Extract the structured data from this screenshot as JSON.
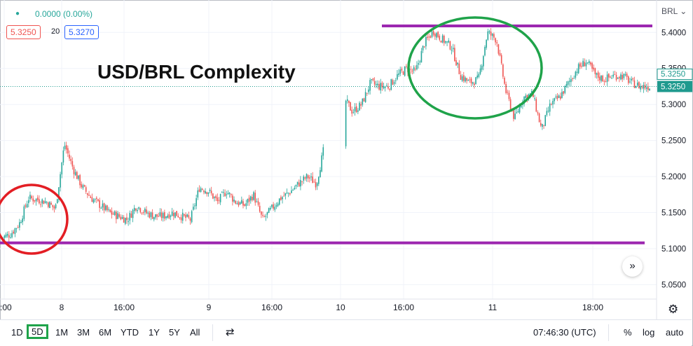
{
  "header": {
    "change_text": "0.0000 (0.00%)",
    "bid": "5.3250",
    "spread": "20",
    "ask": "5.3270",
    "currency": "BRL",
    "currency_caret": "⌄"
  },
  "annotation_title": "USD/BRL Complexity",
  "time_axis_labels": [
    ":00",
    "8",
    "16:00",
    "9",
    "16:00",
    "10",
    "16:00",
    "11",
    "18:00"
  ],
  "toolbar": {
    "timeframes": [
      "1D",
      "5D",
      "1M",
      "3M",
      "6M",
      "YTD",
      "1Y",
      "5Y",
      "All"
    ],
    "selected_timeframe": "5D",
    "clock": "07:46:30 (UTC)",
    "percent_label": "%",
    "log_label": "log",
    "auto_label": "auto"
  },
  "colors": {
    "up": "#26a69a",
    "down": "#ef5350",
    "support_resistance": "#9c27b0",
    "circle_red": "#e31e24",
    "circle_green": "#1fa34a",
    "price_badge": "#1f9a8e"
  },
  "icons": [
    "settings-gear-icon",
    "compare-icon",
    "scroll-right-icon",
    "status-dot-icon"
  ],
  "chart_data": {
    "type": "candlestick",
    "symbol": "USD/BRL",
    "y_axis_labels": [
      "5.4000",
      "5.3500",
      "5.3250",
      "5.3000",
      "5.2500",
      "5.2000",
      "5.1500",
      "5.1000",
      "5.0500"
    ],
    "y_ticks": [
      5.4,
      5.35,
      5.3,
      5.25,
      5.2,
      5.15,
      5.1,
      5.05
    ],
    "ylim": [
      5.03,
      5.445
    ],
    "last_price": 5.325,
    "last_price_label": "5.3250",
    "secondary_price_label": "5.3250",
    "horizontal_lines": [
      {
        "role": "resistance",
        "value": 5.409
      },
      {
        "role": "support",
        "value": 5.108
      }
    ],
    "annotations": [
      "red circle around early low",
      "green circle around double top"
    ],
    "close_path": [
      [
        0,
        5.115
      ],
      [
        2,
        5.12
      ],
      [
        4,
        5.135
      ],
      [
        6,
        5.17
      ],
      [
        8,
        5.168
      ],
      [
        10,
        5.165
      ],
      [
        12,
        5.155
      ],
      [
        13,
        5.2
      ],
      [
        14,
        5.245
      ],
      [
        16,
        5.21
      ],
      [
        18,
        5.185
      ],
      [
        20,
        5.17
      ],
      [
        22,
        5.16
      ],
      [
        24,
        5.15
      ],
      [
        26,
        5.145
      ],
      [
        28,
        5.14
      ],
      [
        30,
        5.16
      ],
      [
        32,
        5.15
      ],
      [
        34,
        5.145
      ],
      [
        36,
        5.145
      ],
      [
        38,
        5.15
      ],
      [
        40,
        5.145
      ],
      [
        42,
        5.14
      ],
      [
        44,
        5.185
      ],
      [
        46,
        5.18
      ],
      [
        48,
        5.165
      ],
      [
        50,
        5.18
      ],
      [
        52,
        5.165
      ],
      [
        54,
        5.16
      ],
      [
        56,
        5.175
      ],
      [
        58,
        5.14
      ],
      [
        60,
        5.155
      ],
      [
        62,
        5.17
      ],
      [
        64,
        5.178
      ],
      [
        66,
        5.19
      ],
      [
        68,
        5.2
      ],
      [
        70,
        5.19
      ],
      [
        72,
        5.25
      ],
      [
        74,
        5.3
      ],
      [
        76,
        5.31
      ],
      [
        78,
        5.29
      ],
      [
        80,
        5.3
      ],
      [
        82,
        5.33
      ],
      [
        84,
        5.325
      ],
      [
        86,
        5.325
      ],
      [
        88,
        5.34
      ],
      [
        90,
        5.35
      ],
      [
        92,
        5.345
      ],
      [
        94,
        5.385
      ],
      [
        96,
        5.402
      ],
      [
        98,
        5.39
      ],
      [
        100,
        5.38
      ],
      [
        102,
        5.34
      ],
      [
        104,
        5.33
      ],
      [
        106,
        5.335
      ],
      [
        108,
        5.4
      ],
      [
        110,
        5.39
      ],
      [
        112,
        5.32
      ],
      [
        114,
        5.28
      ],
      [
        116,
        5.31
      ],
      [
        118,
        5.315
      ],
      [
        120,
        5.265
      ],
      [
        122,
        5.3
      ],
      [
        124,
        5.31
      ],
      [
        126,
        5.33
      ],
      [
        128,
        5.35
      ],
      [
        130,
        5.36
      ],
      [
        132,
        5.34
      ],
      [
        134,
        5.335
      ],
      [
        136,
        5.34
      ],
      [
        138,
        5.34
      ],
      [
        140,
        5.33
      ],
      [
        142,
        5.325
      ],
      [
        144,
        5.325
      ]
    ]
  }
}
